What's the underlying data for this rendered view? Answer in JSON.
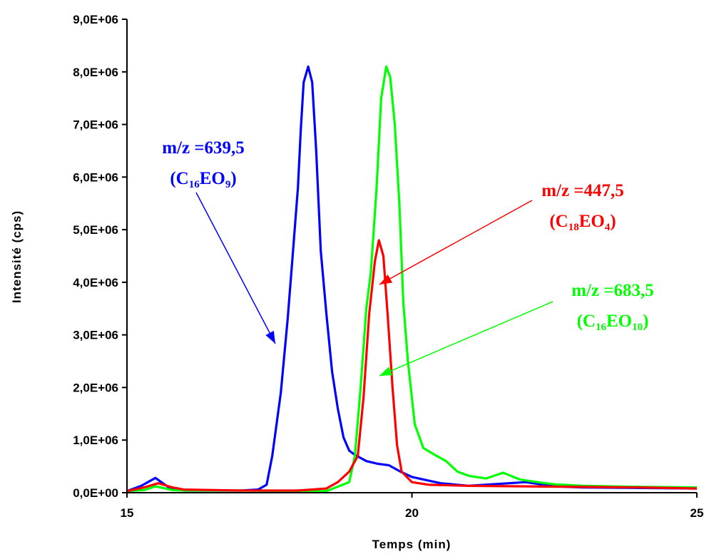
{
  "chart_data": {
    "type": "line",
    "xlabel": "Temps (min)",
    "ylabel": "Intensité (cps)",
    "xlim": [
      15,
      25
    ],
    "ylim": [
      0,
      9000000
    ],
    "x_ticks": [
      {
        "value": 15,
        "label": "15"
      },
      {
        "value": 20,
        "label": "20"
      },
      {
        "value": 25,
        "label": "25"
      }
    ],
    "y_ticks": [
      {
        "value": 0,
        "label": "0,0E+00"
      },
      {
        "value": 1000000,
        "label": "1,0E+06"
      },
      {
        "value": 2000000,
        "label": "2,0E+06"
      },
      {
        "value": 3000000,
        "label": "3,0E+06"
      },
      {
        "value": 4000000,
        "label": "4,0E+06"
      },
      {
        "value": 5000000,
        "label": "5,0E+06"
      },
      {
        "value": 6000000,
        "label": "6,0E+06"
      },
      {
        "value": 7000000,
        "label": "7,0E+06"
      },
      {
        "value": 8000000,
        "label": "8,0E+06"
      },
      {
        "value": 9000000,
        "label": "9,0E+06"
      }
    ],
    "grid": false,
    "legend": "none",
    "series": [
      {
        "color": "#0000ff",
        "points": [
          [
            15.0,
            30000
          ],
          [
            15.25,
            130000
          ],
          [
            15.5,
            280000
          ],
          [
            15.75,
            90000
          ],
          [
            16.0,
            40000
          ],
          [
            16.5,
            40000
          ],
          [
            17.0,
            40000
          ],
          [
            17.3,
            60000
          ],
          [
            17.45,
            150000
          ],
          [
            17.55,
            700000
          ],
          [
            17.7,
            1900000
          ],
          [
            17.82,
            3300000
          ],
          [
            17.9,
            4400000
          ],
          [
            18.0,
            5800000
          ],
          [
            18.05,
            6900000
          ],
          [
            18.1,
            7800000
          ],
          [
            18.18,
            8100000
          ],
          [
            18.25,
            7800000
          ],
          [
            18.32,
            6500000
          ],
          [
            18.4,
            4600000
          ],
          [
            18.5,
            3400000
          ],
          [
            18.6,
            2300000
          ],
          [
            18.7,
            1600000
          ],
          [
            18.8,
            1050000
          ],
          [
            18.9,
            800000
          ],
          [
            19.0,
            720000
          ],
          [
            19.2,
            600000
          ],
          [
            19.4,
            550000
          ],
          [
            19.6,
            520000
          ],
          [
            19.8,
            400000
          ],
          [
            20.0,
            300000
          ],
          [
            20.5,
            180000
          ],
          [
            21.0,
            130000
          ],
          [
            22.0,
            200000
          ],
          [
            22.5,
            120000
          ],
          [
            23.0,
            100000
          ],
          [
            24.0,
            90000
          ],
          [
            25.0,
            80000
          ]
        ]
      },
      {
        "color": "#00ff00",
        "points": [
          [
            15.0,
            30000
          ],
          [
            15.3,
            50000
          ],
          [
            15.5,
            120000
          ],
          [
            15.8,
            50000
          ],
          [
            16.0,
            40000
          ],
          [
            17.0,
            40000
          ],
          [
            18.0,
            30000
          ],
          [
            18.5,
            30000
          ],
          [
            18.9,
            200000
          ],
          [
            19.0,
            700000
          ],
          [
            19.1,
            2000000
          ],
          [
            19.2,
            3500000
          ],
          [
            19.28,
            4200000
          ],
          [
            19.38,
            5800000
          ],
          [
            19.46,
            7500000
          ],
          [
            19.55,
            8100000
          ],
          [
            19.62,
            7900000
          ],
          [
            19.7,
            7000000
          ],
          [
            19.78,
            5500000
          ],
          [
            19.85,
            3600000
          ],
          [
            19.93,
            2500000
          ],
          [
            20.05,
            1300000
          ],
          [
            20.2,
            850000
          ],
          [
            20.4,
            720000
          ],
          [
            20.6,
            600000
          ],
          [
            20.8,
            400000
          ],
          [
            21.0,
            320000
          ],
          [
            21.3,
            270000
          ],
          [
            21.6,
            380000
          ],
          [
            21.9,
            250000
          ],
          [
            22.2,
            200000
          ],
          [
            22.5,
            160000
          ],
          [
            23.0,
            130000
          ],
          [
            23.5,
            120000
          ],
          [
            24.0,
            110000
          ],
          [
            25.0,
            100000
          ]
        ]
      },
      {
        "color": "#ff0000",
        "points": [
          [
            15.0,
            30000
          ],
          [
            15.3,
            100000
          ],
          [
            15.55,
            180000
          ],
          [
            15.8,
            100000
          ],
          [
            16.0,
            60000
          ],
          [
            17.0,
            40000
          ],
          [
            18.0,
            40000
          ],
          [
            18.5,
            80000
          ],
          [
            18.7,
            200000
          ],
          [
            18.9,
            400000
          ],
          [
            19.05,
            700000
          ],
          [
            19.15,
            1800000
          ],
          [
            19.25,
            3400000
          ],
          [
            19.35,
            4400000
          ],
          [
            19.42,
            4800000
          ],
          [
            19.5,
            4500000
          ],
          [
            19.58,
            3300000
          ],
          [
            19.66,
            2000000
          ],
          [
            19.74,
            900000
          ],
          [
            19.82,
            400000
          ],
          [
            20.0,
            200000
          ],
          [
            20.3,
            150000
          ],
          [
            21.0,
            130000
          ],
          [
            22.0,
            120000
          ],
          [
            23.0,
            110000
          ],
          [
            24.0,
            100000
          ],
          [
            25.0,
            80000
          ]
        ]
      }
    ],
    "annotations": [
      {
        "line1": "m/z =639,5",
        "formula": {
          "open": "(C",
          "sub1": "16",
          "mid": "EO",
          "sub2": "9",
          "close": ")"
        },
        "color": "#0000ff"
      },
      {
        "line1": "m/z =447,5",
        "formula": {
          "open": "(C",
          "sub1": "18",
          "mid": "EO",
          "sub2": "4",
          "close": ")"
        },
        "color": "#ff0000"
      },
      {
        "line1": "m/z =683,5",
        "formula": {
          "open": "(C",
          "sub1": "16",
          "mid": "EO",
          "sub2": "10",
          "close": ")"
        },
        "color": "#00ff00"
      }
    ]
  }
}
